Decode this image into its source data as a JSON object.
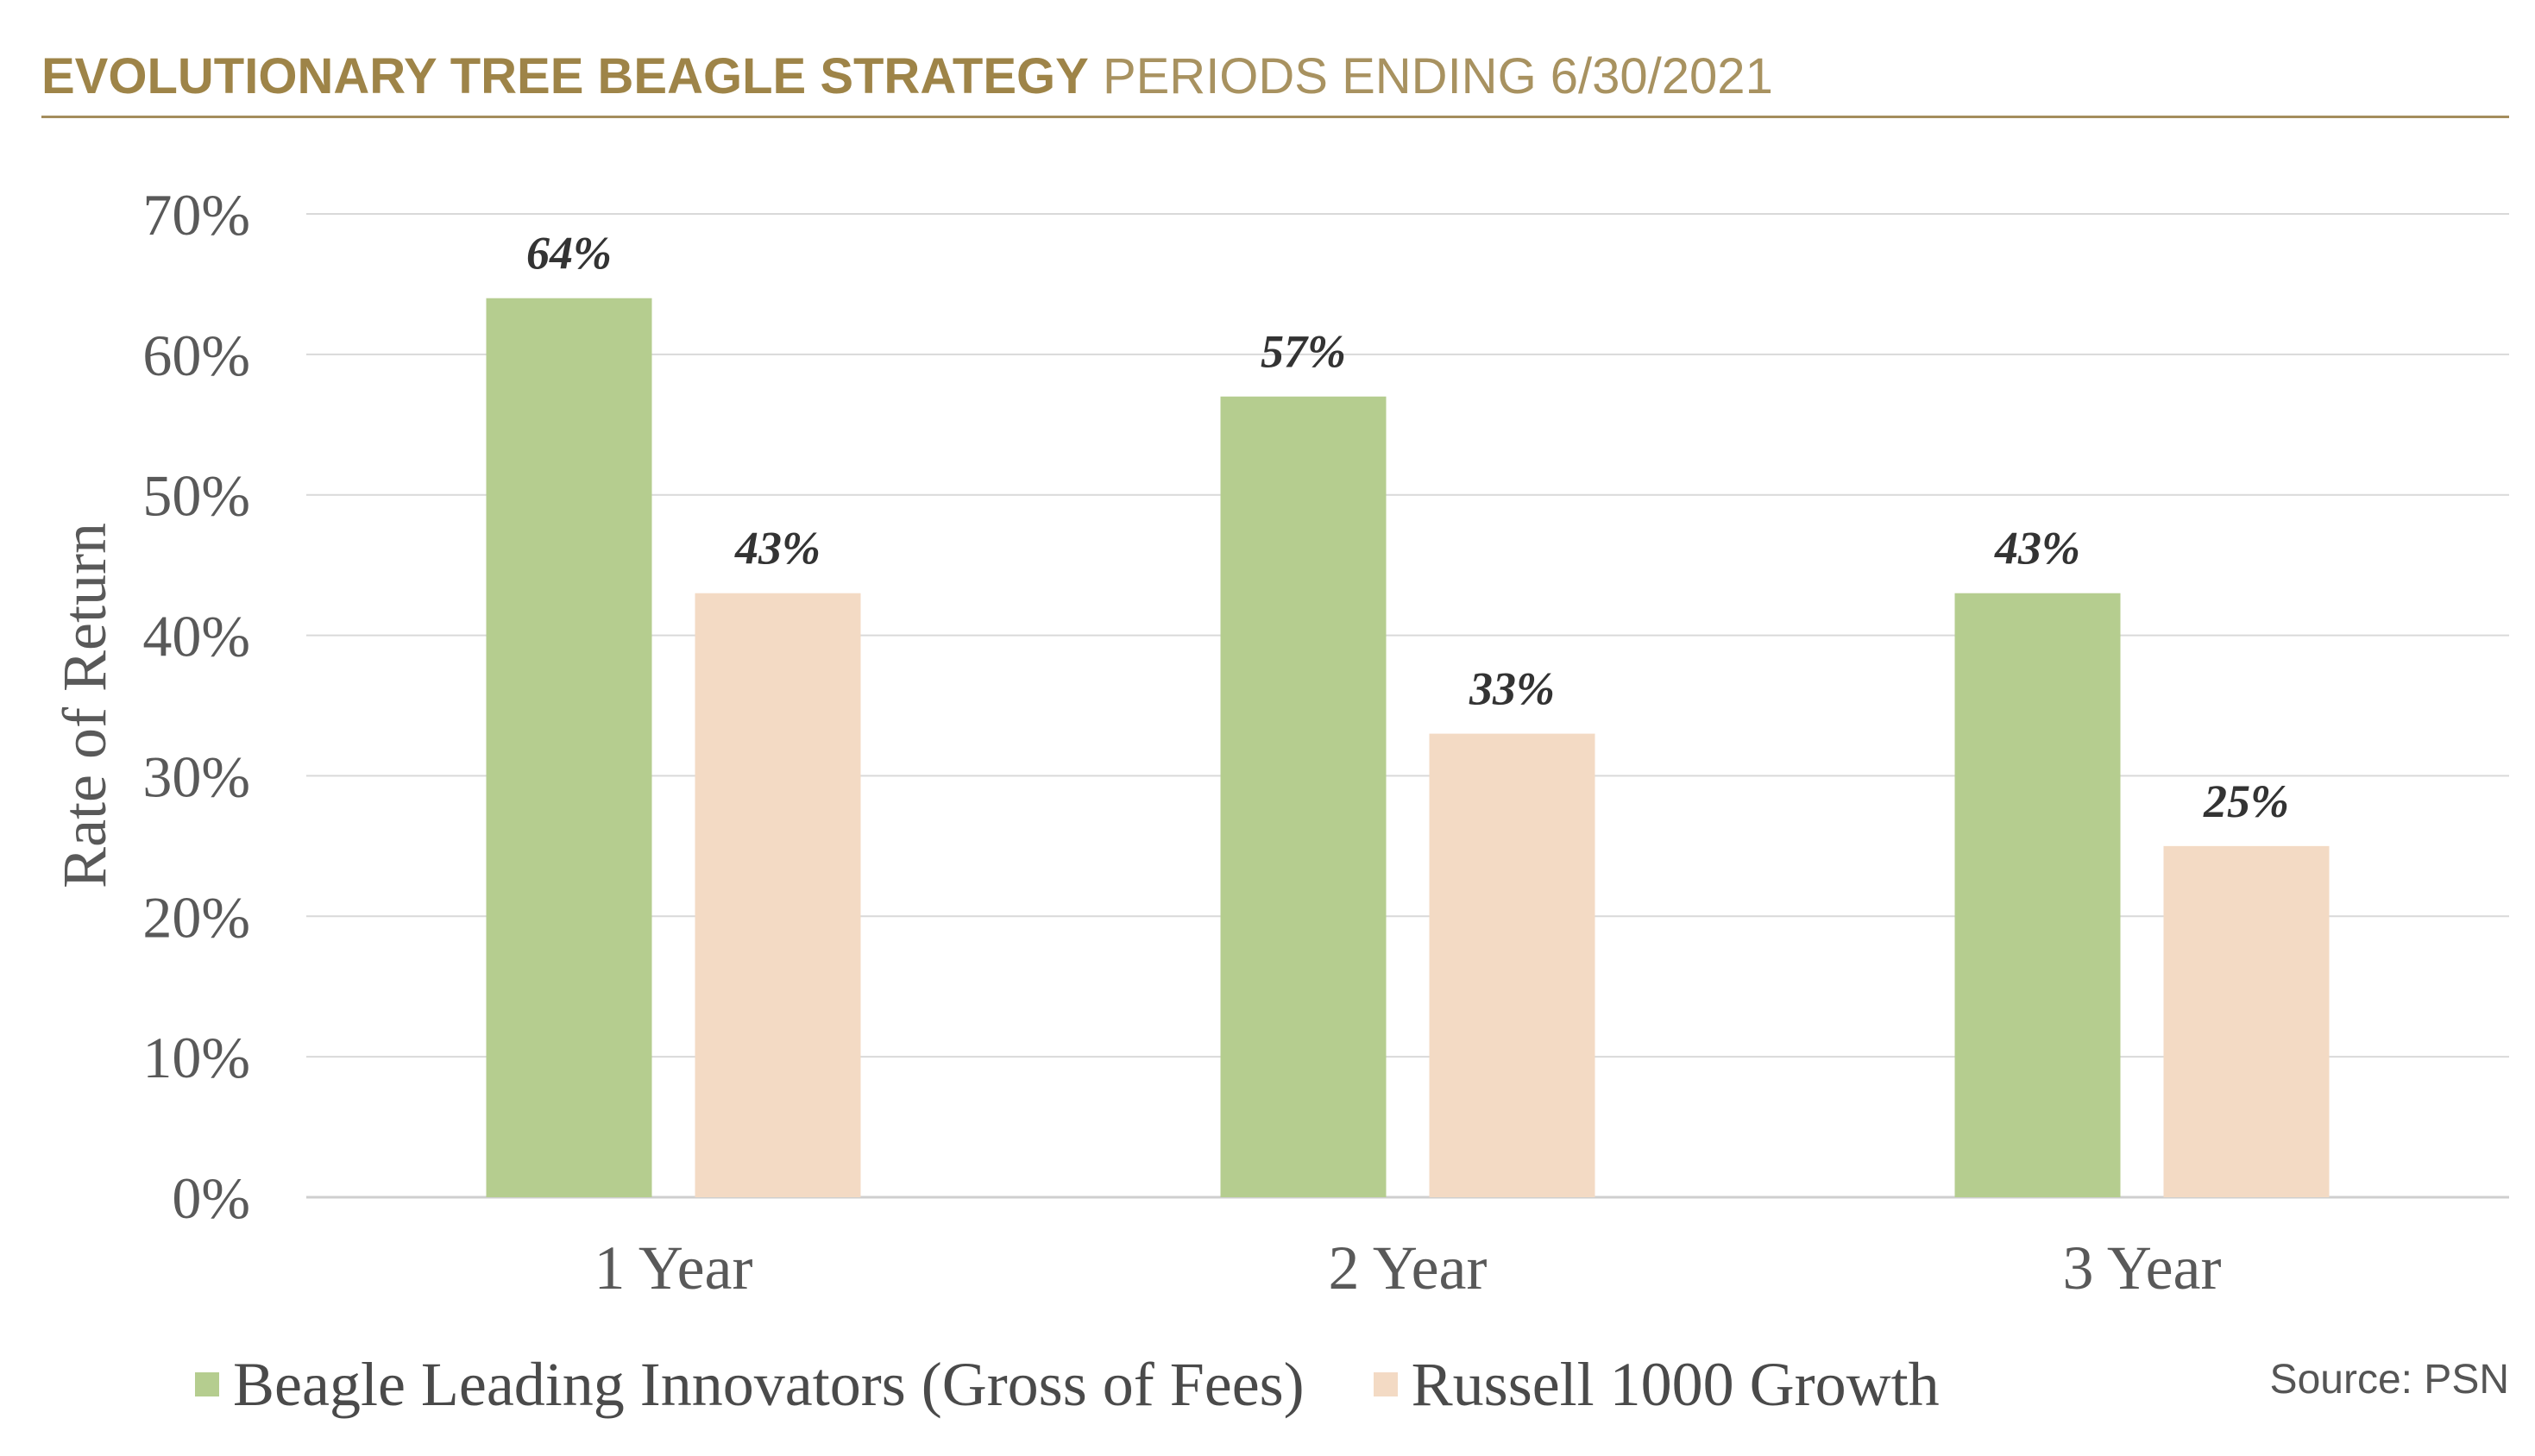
{
  "header": {
    "title_bold": "EVOLUTIONARY TREE BEAGLE STRATEGY",
    "title_light": "PERIODS ENDING 6/30/2021"
  },
  "source": "Source: PSN",
  "colors": {
    "series_1": "#b5cd8f",
    "series_2": "#f3dac4",
    "gridline": "#d9d9d9",
    "axis_text": "#595959",
    "data_label": "#333333",
    "header": "#9e8448"
  },
  "chart_data": {
    "type": "bar",
    "title": "",
    "xlabel": "",
    "ylabel": "Rate of Return",
    "ylim": [
      0,
      70
    ],
    "yticks": [
      0,
      10,
      20,
      30,
      40,
      50,
      60,
      70
    ],
    "ytick_labels": [
      "0%",
      "10%",
      "20%",
      "30%",
      "40%",
      "50%",
      "60%",
      "70%"
    ],
    "categories": [
      "1 Year",
      "2 Year",
      "3 Year"
    ],
    "grid": true,
    "legend_position": "bottom",
    "series": [
      {
        "name": "Beagle Leading Innovators (Gross of Fees)",
        "values": [
          64,
          57,
          43
        ],
        "labels": [
          "64%",
          "57%",
          "43%"
        ]
      },
      {
        "name": "Russell 1000 Growth",
        "values": [
          43,
          33,
          25
        ],
        "labels": [
          "43%",
          "33%",
          "25%"
        ]
      }
    ]
  }
}
